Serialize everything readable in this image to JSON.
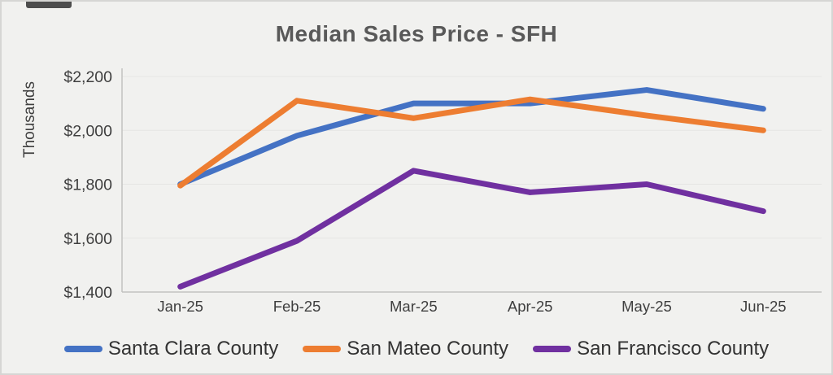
{
  "chart_data": {
    "type": "line",
    "title": "Median Sales Price - SFH",
    "ylabel": "Thousands",
    "xlabel": "",
    "categories": [
      "Jan-25",
      "Feb-25",
      "Mar-25",
      "Apr-25",
      "May-25",
      "Jun-25"
    ],
    "series": [
      {
        "name": "Santa Clara County",
        "color": "#4472C4",
        "values": [
          1800,
          1980,
          2100,
          2100,
          2150,
          2080
        ]
      },
      {
        "name": "San Mateo County",
        "color": "#ED7D31",
        "values": [
          1795,
          2110,
          2045,
          2115,
          2055,
          2000
        ]
      },
      {
        "name": "San Francisco County",
        "color": "#7030A0",
        "values": [
          1420,
          1590,
          1850,
          1770,
          1800,
          1700
        ]
      }
    ],
    "ylim": [
      1400,
      2200
    ],
    "ytick_step": 200,
    "ytick_prefix": "$",
    "grid": true,
    "legend_position": "bottom"
  },
  "colors": {
    "background": "#f1f1ef",
    "title_text": "#595959",
    "axis_line": "#c2c2c0",
    "gridline": "#e6e6e4",
    "tick_text": "#3f3f3f"
  }
}
